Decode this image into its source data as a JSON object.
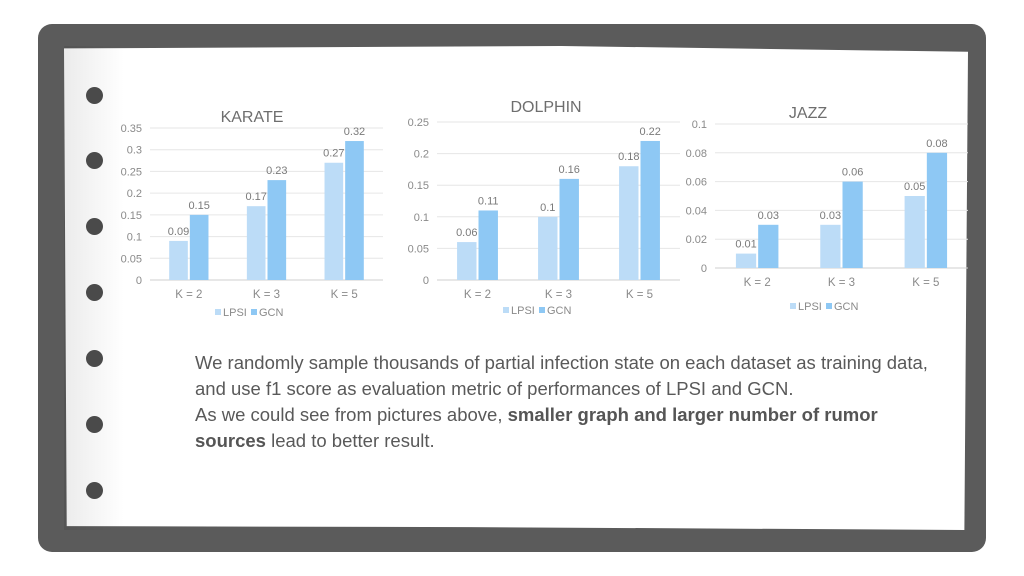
{
  "chart_data": [
    {
      "type": "bar",
      "title": "KARATE",
      "categories": [
        "K = 2",
        "K = 3",
        "K = 5"
      ],
      "series": [
        {
          "name": "LPSI",
          "values": [
            0.09,
            0.17,
            0.27
          ]
        },
        {
          "name": "GCN",
          "values": [
            0.15,
            0.23,
            0.32
          ]
        }
      ],
      "ylim": [
        0,
        0.35
      ],
      "yticks": [
        "0",
        "0.05",
        "0.1",
        "0.15",
        "0.2",
        "0.25",
        "0.3",
        "0.35"
      ],
      "grid": true,
      "legend": "bottom"
    },
    {
      "type": "bar",
      "title": "DOLPHIN",
      "categories": [
        "K = 2",
        "K = 3",
        "K = 5"
      ],
      "series": [
        {
          "name": "LPSI",
          "values": [
            0.06,
            0.1,
            0.18
          ]
        },
        {
          "name": "GCN",
          "values": [
            0.11,
            0.16,
            0.22
          ]
        }
      ],
      "ylim": [
        0,
        0.25
      ],
      "yticks": [
        "0",
        "0.05",
        "0.1",
        "0.15",
        "0.2",
        "0.25"
      ],
      "grid": true,
      "legend": "bottom"
    },
    {
      "type": "bar",
      "title": "JAZZ",
      "categories": [
        "K = 2",
        "K = 3",
        "K = 5"
      ],
      "series": [
        {
          "name": "LPSI",
          "values": [
            0.01,
            0.03,
            0.05
          ]
        },
        {
          "name": "GCN",
          "values": [
            0.03,
            0.06,
            0.08
          ]
        }
      ],
      "ylim": [
        0,
        0.1
      ],
      "yticks": [
        "0",
        "0.02",
        "0.04",
        "0.06",
        "0.08",
        "0.1"
      ],
      "grid": true,
      "legend": "bottom"
    }
  ],
  "colors": {
    "LPSI": "#bcdcf7",
    "GCN": "#8ec8f4",
    "frame": "#5b5b5b",
    "hole": "#4a4a4a"
  },
  "text": {
    "p1": "We randomly sample thousands of partial infection state on each dataset as training data, and use f1 score as evaluation metric of performances of LPSI and GCN.",
    "p2_start": "As we could see from pictures above, ",
    "p2_bold": "smaller graph and larger number of rumor sources",
    "p2_end": " lead to better result."
  }
}
